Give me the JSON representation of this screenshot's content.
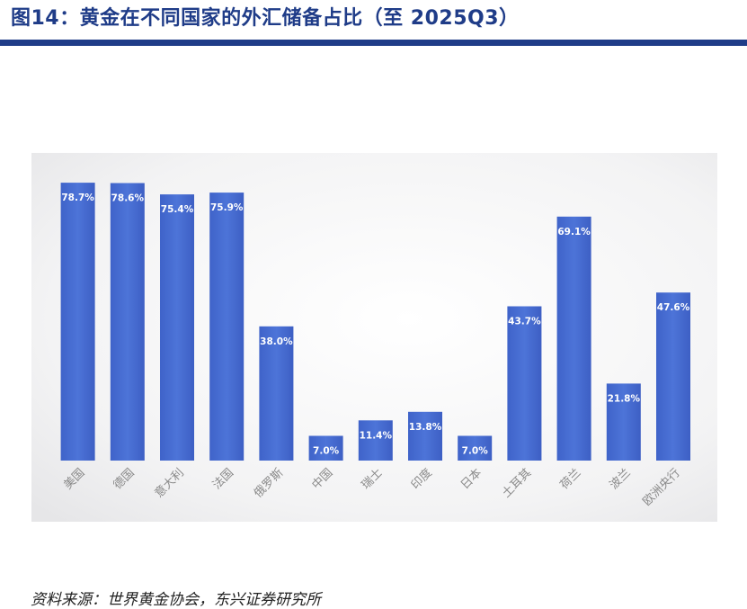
{
  "header": {
    "title": "图14：黄金在不同国家的外汇储备占比（至 2025Q3）"
  },
  "chart_data": {
    "type": "bar",
    "categories": [
      "美国",
      "德国",
      "意大利",
      "法国",
      "俄罗斯",
      "中国",
      "瑞士",
      "印度",
      "日本",
      "土耳其",
      "荷兰",
      "波兰",
      "欧洲央行"
    ],
    "values": [
      78.7,
      78.6,
      75.4,
      75.9,
      38.0,
      7.0,
      11.4,
      13.8,
      7.0,
      43.7,
      69.1,
      21.8,
      47.6
    ],
    "value_labels": [
      "78.7%",
      "78.6%",
      "75.4%",
      "75.9%",
      "38.0%",
      "7.0%",
      "11.4%",
      "13.8%",
      "7.0%",
      "43.7%",
      "69.1%",
      "21.8%",
      "47.6%"
    ],
    "title": "",
    "xlabel": "",
    "ylabel": "",
    "ylim": [
      0,
      80
    ],
    "grid": false,
    "legend": "none",
    "bar_color": "#4a6fd1",
    "bar_color_dark": "#3558bd"
  },
  "footer": {
    "source": "资料来源：世界黄金协会，东兴证券研究所"
  }
}
